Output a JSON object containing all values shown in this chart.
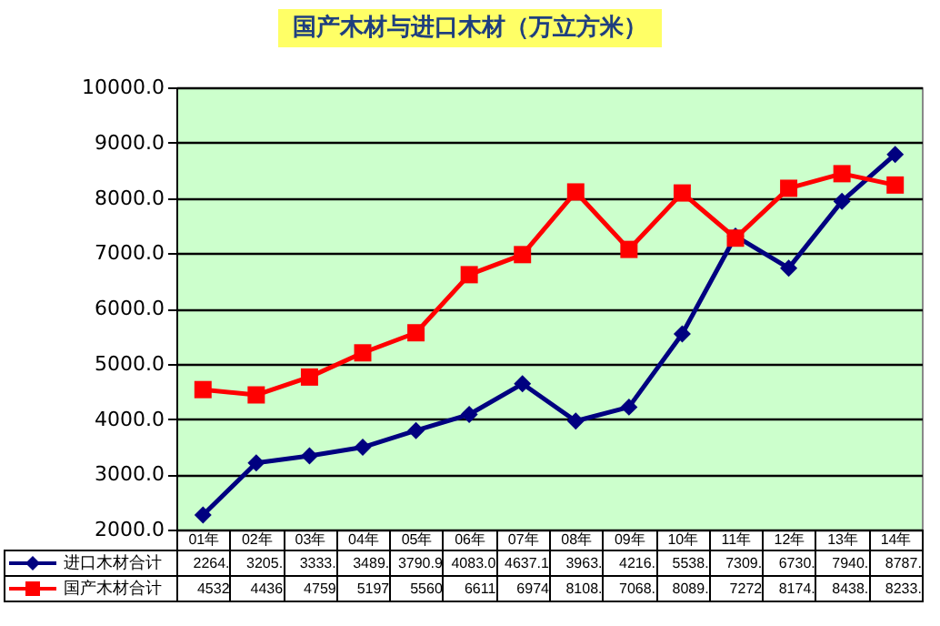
{
  "chart_data": {
    "type": "line",
    "title": "国产木材与进口木材（万立方米）",
    "categories": [
      "01年",
      "02年",
      "03年",
      "04年",
      "05年",
      "06年",
      "07年",
      "08年",
      "09年",
      "10年",
      "11年",
      "12年",
      "13年",
      "14年"
    ],
    "series": [
      {
        "name": "进口木材合计",
        "color": "#000080",
        "marker": "diamond",
        "values": [
          2264,
          3205,
          3333,
          3489,
          3790.9,
          4083.0,
          4637.1,
          3963,
          4216,
          5538,
          7309,
          6730,
          7940,
          8787
        ],
        "value_labels": [
          "2264.",
          "3205.",
          "3333.",
          "3489.",
          "3790.9",
          "4083.0",
          "4637.1",
          "3963.",
          "4216.",
          "5538.",
          "7309.",
          "6730.",
          "7940.",
          "8787."
        ]
      },
      {
        "name": "国产木材合计",
        "color": "#ff0000",
        "marker": "square",
        "values": [
          4532,
          4436,
          4759,
          5197,
          5560,
          6611,
          6974,
          8108,
          7068,
          8089,
          7272,
          8174,
          8438,
          8233
        ],
        "value_labels": [
          "4532",
          "4436",
          "4759",
          "5197",
          "5560",
          "6611",
          "6974",
          "8108.",
          "7068.",
          "8089.",
          "7272",
          "8174.",
          "8438.",
          "8233."
        ]
      }
    ],
    "ylim": [
      2000,
      10000
    ],
    "yticks": [
      {
        "value": 2000,
        "label": "2000.0"
      },
      {
        "value": 3000,
        "label": "3000.0"
      },
      {
        "value": 4000,
        "label": "4000.0"
      },
      {
        "value": 5000,
        "label": "5000.0"
      },
      {
        "value": 6000,
        "label": "6000.0"
      },
      {
        "value": 7000,
        "label": "7000.0"
      },
      {
        "value": 8000,
        "label": "8000.0"
      },
      {
        "value": 9000,
        "label": "9000.0"
      },
      {
        "value": 10000,
        "label": "10000.0"
      }
    ],
    "grid": "y",
    "legend": "bottom",
    "tick_labels": "y",
    "line_style": "solid"
  }
}
